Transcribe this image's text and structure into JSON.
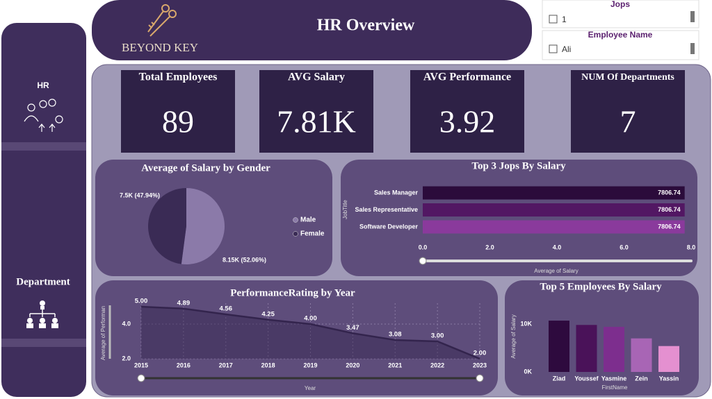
{
  "header": {
    "logo_text": "BEYOND KEY",
    "title": "HR Overview"
  },
  "slicers": [
    {
      "title": "Jops",
      "option": "1"
    },
    {
      "title": "Employee Name",
      "option": "Ali"
    }
  ],
  "nav": [
    "HR",
    "Department"
  ],
  "kpis": [
    {
      "label": "Total Employees",
      "value": 89
    },
    {
      "label": "AVG Salary",
      "value": "7.81K"
    },
    {
      "label": "AVG Performance",
      "value": 3.92
    },
    {
      "label": "NUM Of Departments",
      "value": 7
    }
  ],
  "chart_data": [
    {
      "type": "pie",
      "title": "Average of Salary by Gender",
      "categories": [
        "Male",
        "Female"
      ],
      "values": [
        8150,
        7500
      ],
      "value_labels": [
        "8.15K (52.06%)",
        "7.5K (47.94%)"
      ],
      "colors": [
        "#8b7aa9",
        "#3a2b55"
      ],
      "legend": "right"
    },
    {
      "type": "hbar",
      "title": "Top 3 Jops By Salary",
      "categories": [
        "Sales Manager",
        "Sales Representative",
        "Software Developer"
      ],
      "values": [
        7.80674,
        7.80674,
        7.80674
      ],
      "value_labels": [
        "7806.74",
        "7806.74",
        "7806.74"
      ],
      "colors": [
        "#2b0b3b",
        "#521763",
        "#8a3a9c"
      ],
      "xlim": [
        0,
        8
      ],
      "xticks": [
        {
          "value": 0,
          "label": "0.0"
        },
        {
          "value": 2,
          "label": "2.0"
        },
        {
          "value": 4,
          "label": "4.0"
        },
        {
          "value": 6,
          "label": "6.0"
        },
        {
          "value": 8,
          "label": "8.0"
        }
      ],
      "x_label": "Average of Salary",
      "y_label": "JobTitle"
    },
    {
      "type": "line",
      "title": "PerformanceRating by Year",
      "x": [
        2015,
        2016,
        2017,
        2018,
        2019,
        2020,
        2021,
        2022,
        2023
      ],
      "values": [
        5.0,
        4.89,
        4.56,
        4.25,
        4.0,
        3.47,
        3.08,
        3.0,
        2.0
      ],
      "value_labels": [
        "5.00",
        "4.89",
        "4.56",
        "4.25",
        "4.00",
        "3.47",
        "3.08",
        "3.00",
        "2.00"
      ],
      "color": "#33244d",
      "xlim": [
        2015,
        2023
      ],
      "xticks": [
        2015,
        2016,
        2017,
        2018,
        2019,
        2020,
        2021,
        2022,
        2023
      ],
      "ylim": [
        2,
        5.2
      ],
      "yticks": [
        {
          "value": 2,
          "label": "2.0"
        },
        {
          "value": 4,
          "label": "4.0"
        }
      ],
      "x_label": "Year",
      "y_label": "Average of Performan",
      "grid": true
    },
    {
      "type": "column",
      "title": "Top 5 Employees By Salary",
      "categories": [
        "Ziad",
        "Youssef",
        "Yasmine",
        "Zein",
        "Yassin"
      ],
      "values": [
        10.7,
        9.8,
        9.4,
        7.0,
        5.4
      ],
      "colors": [
        "#2e0a3e",
        "#4a1259",
        "#7d2e8e",
        "#a865b5",
        "#e490d0"
      ],
      "ylim": [
        0,
        11
      ],
      "yticks": [
        {
          "value": 0,
          "label": "0K"
        },
        {
          "value": 10,
          "label": "10K"
        }
      ],
      "x_label": "FirstName",
      "y_label": "Average of Salary"
    }
  ]
}
